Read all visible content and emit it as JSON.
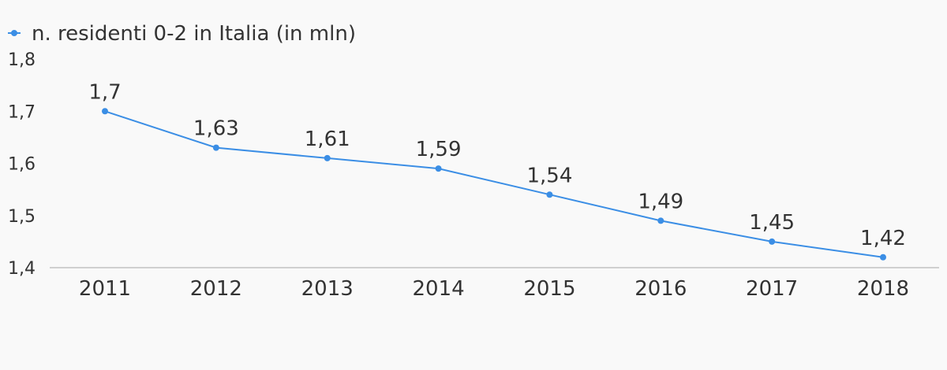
{
  "chart_data": {
    "type": "line",
    "categories": [
      "2011",
      "2012",
      "2013",
      "2014",
      "2015",
      "2016",
      "2017",
      "2018"
    ],
    "series": [
      {
        "name": "n. residenti 0-2 in Italia (in mln)",
        "values": [
          1.7,
          1.63,
          1.61,
          1.59,
          1.54,
          1.49,
          1.45,
          1.42
        ],
        "labels": [
          "1,7",
          "1,63",
          "1,61",
          "1,59",
          "1,54",
          "1,49",
          "1,45",
          "1,42"
        ],
        "color": "#3b8ee5"
      }
    ],
    "yticks": [
      "1,4",
      "1,5",
      "1,6",
      "1,7",
      "1,8"
    ],
    "ytick_values": [
      1.4,
      1.5,
      1.6,
      1.7,
      1.8
    ],
    "ylim": [
      1.4,
      1.8
    ],
    "grid": false,
    "legend": "top-left",
    "axis_color": "#d0d0d0"
  }
}
